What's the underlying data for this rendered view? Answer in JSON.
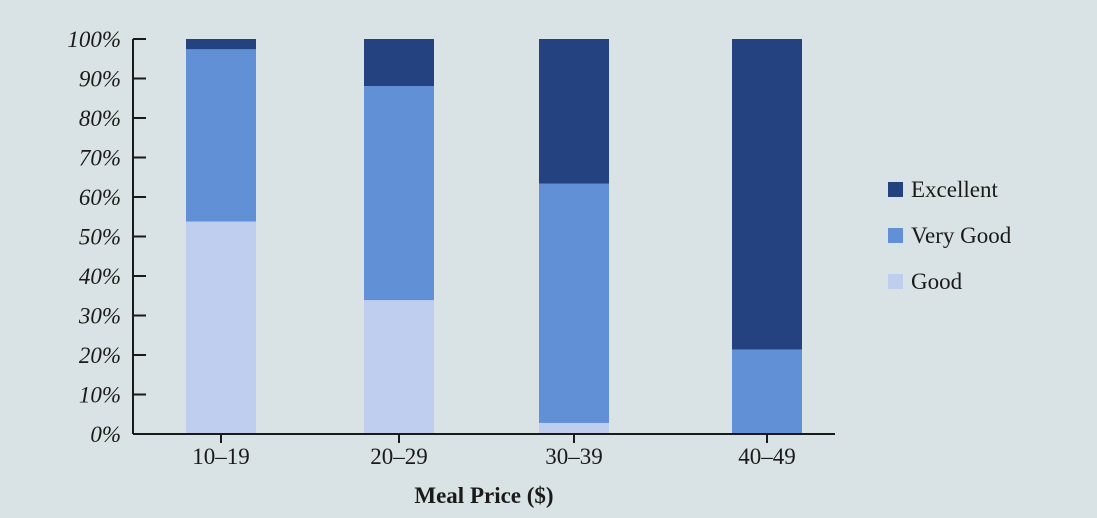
{
  "chart_data": {
    "type": "bar",
    "stacked": true,
    "categories": [
      "10–19",
      "20–29",
      "30–39",
      "40–49"
    ],
    "series": [
      {
        "name": "Good",
        "color": "#bfcdee",
        "values": [
          53.8,
          33.9,
          2.8,
          0
        ]
      },
      {
        "name": "Very Good",
        "color": "#6190d6",
        "values": [
          43.6,
          54.2,
          60.6,
          21.4
        ]
      },
      {
        "name": "Excellent",
        "color": "#23427f",
        "values": [
          2.6,
          11.9,
          36.6,
          78.6
        ]
      }
    ],
    "title": "",
    "xlabel": "Meal Price ($)",
    "ylabel": "",
    "ylim": [
      0,
      100
    ],
    "yticks": [
      "0%",
      "10%",
      "20%",
      "30%",
      "40%",
      "50%",
      "60%",
      "70%",
      "80%",
      "90%",
      "100%"
    ],
    "legend_order": [
      "Excellent",
      "Very Good",
      "Good"
    ],
    "legend_position": "right",
    "grid": false
  }
}
